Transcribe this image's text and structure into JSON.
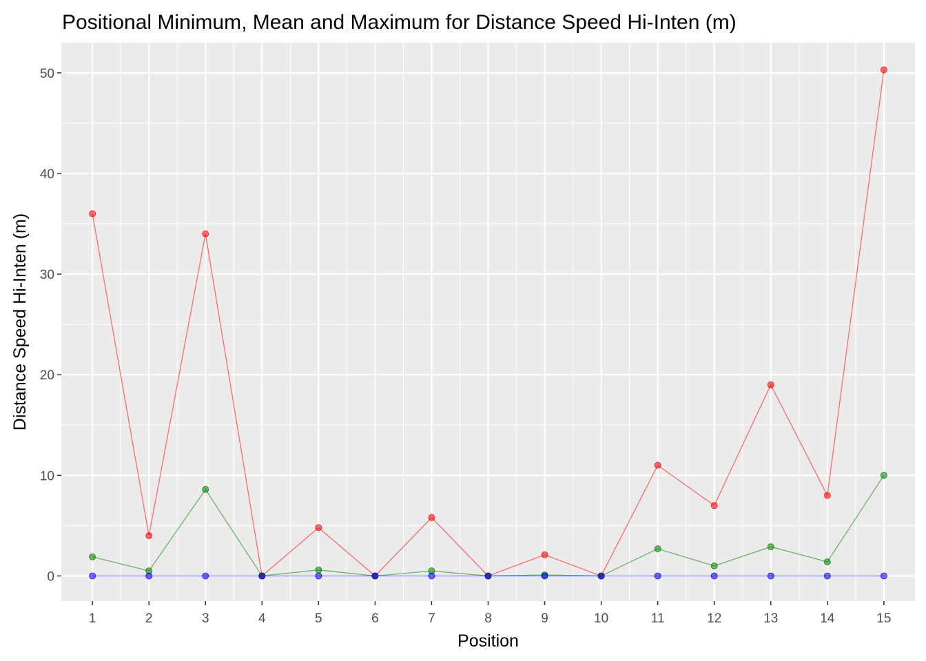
{
  "chart_data": {
    "type": "line",
    "title": "Positional Minimum, Mean and Maximum for Distance Speed Hi-Inten (m)",
    "xlabel": "Position",
    "ylabel": "Distance Speed Hi-Inten (m)",
    "x": [
      1,
      2,
      3,
      4,
      5,
      6,
      7,
      8,
      9,
      10,
      11,
      12,
      13,
      14,
      15
    ],
    "xlim": [
      0.45,
      15.55
    ],
    "ylim": [
      -2.5,
      53
    ],
    "x_ticks": [
      "1",
      "2",
      "3",
      "4",
      "5",
      "6",
      "7",
      "8",
      "9",
      "10",
      "11",
      "12",
      "13",
      "14",
      "15"
    ],
    "y_ticks": [
      0,
      10,
      20,
      30,
      40,
      50
    ],
    "y_tick_labels": [
      "0",
      "10",
      "20",
      "30",
      "40",
      "50"
    ],
    "grid": true,
    "legend": "none",
    "series": [
      {
        "color": "#ff0000",
        "values": [
          36,
          4,
          34,
          0,
          4.8,
          0,
          5.8,
          0,
          2.1,
          0,
          11,
          7,
          19,
          8,
          50.3
        ]
      },
      {
        "color": "#008000",
        "values": [
          1.9,
          0.5,
          8.6,
          0,
          0.6,
          0,
          0.5,
          0,
          0.1,
          0,
          2.7,
          1.0,
          2.9,
          1.4,
          10
        ]
      },
      {
        "color": "#0000ff",
        "values": [
          0,
          0,
          0,
          0,
          0,
          0,
          0,
          0,
          0,
          0,
          0,
          0,
          0,
          0,
          0
        ]
      }
    ]
  }
}
